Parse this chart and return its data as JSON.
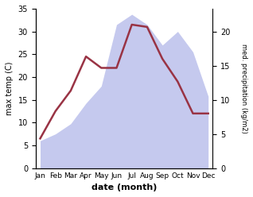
{
  "months": [
    "Jan",
    "Feb",
    "Mar",
    "Apr",
    "May",
    "Jun",
    "Jul",
    "Aug",
    "Sep",
    "Oct",
    "Nov",
    "Dec"
  ],
  "temperature": [
    6.5,
    12.5,
    17.0,
    24.5,
    22.0,
    22.0,
    31.5,
    31.0,
    24.0,
    19.0,
    12.0,
    12.0
  ],
  "precipitation": [
    4.0,
    5.0,
    6.5,
    9.5,
    12.0,
    21.0,
    22.5,
    21.0,
    18.0,
    20.0,
    17.0,
    10.5
  ],
  "temp_color": "#993344",
  "precip_color_fill": "#c5c9ee",
  "temp_ylim": [
    0,
    35
  ],
  "precip_ylim": [
    0,
    23.33
  ],
  "ylabel_left": "max temp (C)",
  "ylabel_right": "med. precipitation (kg/m2)",
  "xlabel": "date (month)",
  "background_color": "#ffffff",
  "right_ticks": [
    0,
    5,
    10,
    15,
    20
  ],
  "left_ticks": [
    0,
    5,
    10,
    15,
    20,
    25,
    30,
    35
  ]
}
